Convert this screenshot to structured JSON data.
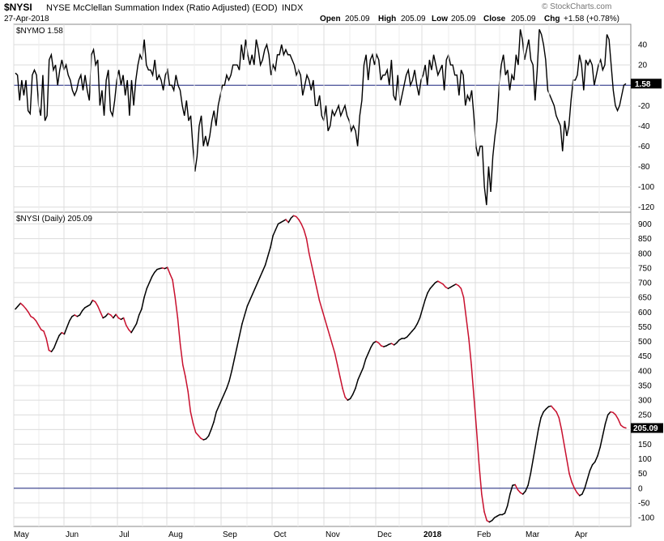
{
  "header": {
    "symbol": "$NYSI",
    "name": "NYSE McClellan Summation Index (Ratio Adjusted) (EOD)",
    "exchange": "INDX",
    "date": "27-Apr-2018",
    "open_label": "Open",
    "open": "205.09",
    "high_label": "High",
    "high": "205.09",
    "low_label": "Low",
    "low": "205.09",
    "close_label": "Close",
    "close": "205.09",
    "chg_label": "Chg",
    "chg": "+1.58 (+0.78%)",
    "watermark": "© StockCharts.com"
  },
  "colors": {
    "up": "#000000",
    "down": "#c8102e",
    "zero_line": "#1a237e",
    "grid": "#dcdcdc",
    "label_box": "#000000"
  },
  "chart_data": [
    {
      "type": "line",
      "legend": "$NYMO 1.58",
      "last_value": "1.58",
      "ylim": [
        -125,
        60
      ],
      "yticks": [
        40,
        20,
        -20,
        -40,
        -60,
        -80,
        -100,
        -120
      ],
      "zero_line": 0,
      "grid": true,
      "series": [
        {
          "values": [
            12,
            10,
            -15,
            5,
            -10,
            5,
            -25,
            -28,
            10,
            15,
            10,
            -20,
            -30,
            10,
            -35,
            -30,
            25,
            30,
            15,
            20,
            0,
            15,
            25,
            15,
            20,
            10,
            5,
            -5,
            -10,
            -5,
            5,
            10,
            -5,
            10,
            -5,
            -15,
            30,
            35,
            20,
            25,
            -20,
            -5,
            -30,
            5,
            15,
            -25,
            -30,
            -15,
            5,
            15,
            0,
            10,
            -10,
            5,
            -30,
            5,
            -20,
            5,
            20,
            30,
            25,
            45,
            20,
            15,
            15,
            10,
            25,
            5,
            10,
            5,
            -5,
            10,
            15,
            0,
            0,
            -5,
            10,
            0,
            -5,
            -20,
            -30,
            -15,
            -35,
            -30,
            -60,
            -85,
            -70,
            -40,
            -30,
            -60,
            -50,
            -60,
            -50,
            -35,
            -25,
            -40,
            -20,
            -10,
            0,
            0,
            10,
            5,
            10,
            20,
            20,
            20,
            15,
            40,
            25,
            45,
            30,
            20,
            30,
            20,
            45,
            35,
            20,
            25,
            35,
            40,
            30,
            10,
            20,
            15,
            30,
            30,
            40,
            30,
            35,
            30,
            30,
            25,
            20,
            10,
            15,
            10,
            -10,
            0,
            10,
            5,
            -5,
            5,
            -20,
            -20,
            -10,
            -30,
            -35,
            -20,
            -45,
            -40,
            -25,
            -30,
            -25,
            -20,
            -30,
            -25,
            -20,
            -30,
            -35,
            -45,
            -40,
            -45,
            -60,
            -30,
            -15,
            20,
            30,
            5,
            25,
            30,
            20,
            30,
            25,
            5,
            10,
            10,
            15,
            0,
            25,
            -10,
            -15,
            10,
            -20,
            -10,
            0,
            10,
            15,
            0,
            5,
            15,
            0,
            -10,
            5,
            10,
            20,
            0,
            25,
            15,
            30,
            20,
            10,
            15,
            20,
            -5,
            25,
            30,
            20,
            20,
            10,
            10,
            -10,
            15,
            10,
            -20,
            -10,
            -15,
            -5,
            -30,
            -60,
            -70,
            -60,
            -60,
            -100,
            -118,
            -80,
            -105,
            -70,
            -50,
            -35,
            0,
            20,
            30,
            10,
            15,
            -5,
            10,
            5,
            30,
            20,
            55,
            45,
            25,
            35,
            45,
            25,
            20,
            -15,
            15,
            55,
            50,
            40,
            25,
            -5,
            -10,
            -15,
            -20,
            -30,
            -35,
            -40,
            -65,
            -35,
            -50,
            -40,
            -15,
            5,
            5,
            10,
            30,
            20,
            -5,
            25,
            20,
            25,
            20,
            0,
            10,
            20,
            25,
            15,
            20,
            50,
            45,
            20,
            -5,
            -20,
            -25,
            -20,
            -10,
            0,
            1.58
          ]
        }
      ]
    },
    {
      "type": "line",
      "legend": "$NYSI (Daily) 205.09",
      "last_value": "205.09",
      "ylim": [
        -130,
        940
      ],
      "yticks": [
        900,
        850,
        800,
        750,
        700,
        650,
        600,
        550,
        500,
        450,
        400,
        350,
        300,
        250,
        200,
        150,
        100,
        50,
        0,
        -50,
        -100
      ],
      "zero_line": 0,
      "grid": true,
      "series": [
        {
          "values": [
            610,
            620,
            630,
            622,
            612,
            600,
            585,
            580,
            570,
            555,
            540,
            535,
            510,
            470,
            465,
            478,
            500,
            520,
            530,
            525,
            548,
            570,
            585,
            590,
            585,
            590,
            605,
            615,
            620,
            625,
            640,
            635,
            620,
            600,
            580,
            585,
            595,
            590,
            580,
            592,
            580,
            575,
            580,
            555,
            540,
            530,
            545,
            560,
            590,
            610,
            650,
            680,
            700,
            720,
            735,
            745,
            748,
            750,
            748,
            752,
            730,
            710,
            650,
            580,
            490,
            420,
            380,
            330,
            260,
            220,
            190,
            180,
            170,
            165,
            168,
            178,
            200,
            225,
            260,
            280,
            300,
            320,
            340,
            365,
            400,
            440,
            480,
            520,
            560,
            590,
            620,
            640,
            660,
            680,
            700,
            720,
            740,
            760,
            790,
            820,
            860,
            880,
            900,
            905,
            910,
            915,
            905,
            920,
            928,
            925,
            915,
            900,
            880,
            850,
            800,
            760,
            720,
            680,
            640,
            610,
            580,
            550,
            520,
            490,
            460,
            420,
            380,
            340,
            310,
            300,
            305,
            320,
            340,
            370,
            390,
            410,
            440,
            460,
            480,
            495,
            500,
            495,
            485,
            482,
            485,
            490,
            493,
            488,
            495,
            505,
            510,
            510,
            515,
            525,
            535,
            545,
            560,
            580,
            610,
            640,
            665,
            680,
            690,
            700,
            705,
            700,
            695,
            685,
            680,
            685,
            690,
            695,
            690,
            680,
            650,
            580,
            510,
            420,
            310,
            200,
            80,
            -20,
            -80,
            -110,
            -115,
            -110,
            -100,
            -95,
            -90,
            -90,
            -85,
            -60,
            -20,
            10,
            12,
            -5,
            -15,
            -20,
            -10,
            10,
            50,
            100,
            150,
            200,
            240,
            260,
            270,
            278,
            280,
            270,
            260,
            240,
            200,
            150,
            100,
            50,
            20,
            0,
            -15,
            -25,
            -20,
            0,
            30,
            60,
            80,
            90,
            110,
            140,
            180,
            220,
            250,
            260,
            258,
            250,
            235,
            215,
            208,
            205.09
          ]
        }
      ]
    }
  ],
  "xaxis": {
    "labels": [
      "May",
      "Jun",
      "Jul",
      "Aug",
      "Sep",
      "Oct",
      "Nov",
      "Dec",
      "2018",
      "Feb",
      "Mar",
      "Apr"
    ],
    "bold": "2018"
  }
}
